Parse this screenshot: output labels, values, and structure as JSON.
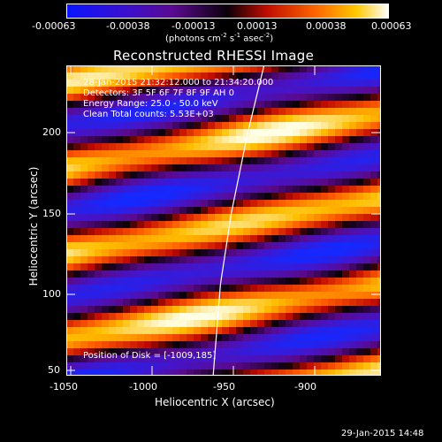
{
  "colorbar": {
    "ticks": [
      "-0.00063",
      "-0.00038",
      "-0.00013",
      "0.00013",
      "0.00038",
      "0.00063"
    ],
    "units_prefix": "(photons cm",
    "units_sup1": "-2",
    "units_mid": " s",
    "units_sup2": "-1",
    "units_mid2": " asec",
    "units_sup3": "-2",
    "units_suffix": ")",
    "colors": [
      "#0a14ff",
      "#3c00a0",
      "#150010",
      "#d41a00",
      "#ffa000",
      "#ffffff"
    ]
  },
  "plot": {
    "title": "Reconstructed RHESSI Image",
    "info_lines": [
      "28-Jan-2015 21:32:12.000 to 21:34:20.000",
      "Detectors: 3F 5F 6F 7F 8F 9F AH 0",
      "Energy Range: 25.0 - 50.0 keV",
      "Clean    Total counts: 5.53E+03"
    ],
    "position_text": "Position of Disk = [-1009,185]",
    "xlabel": "Heliocentric X (arcsec)",
    "ylabel": "Heliocentric Y (arcsec)",
    "xticks": [
      "-1050",
      "-1000",
      "-950",
      "-900"
    ],
    "yticks": [
      "200",
      "150",
      "100",
      "50"
    ]
  },
  "chart_data": {
    "type": "heatmap",
    "title": "Reconstructed RHESSI Image",
    "xlabel": "Heliocentric X (arcsec)",
    "ylabel": "Heliocentric Y (arcsec)",
    "xlim": [
      -1053,
      -880
    ],
    "ylim": [
      49,
      223
    ],
    "xticks": [
      -1050,
      -1000,
      -950,
      -900
    ],
    "yticks": [
      50,
      100,
      150,
      200
    ],
    "colorbar_range": [
      -0.00063,
      0.00063
    ],
    "limb_curve_points": [
      [
        -944,
        223
      ],
      [
        -953,
        185
      ],
      [
        -962,
        140
      ],
      [
        -968,
        100
      ],
      [
        -972,
        49
      ]
    ]
  },
  "timestamp": "29-Jan-2015 14:48"
}
